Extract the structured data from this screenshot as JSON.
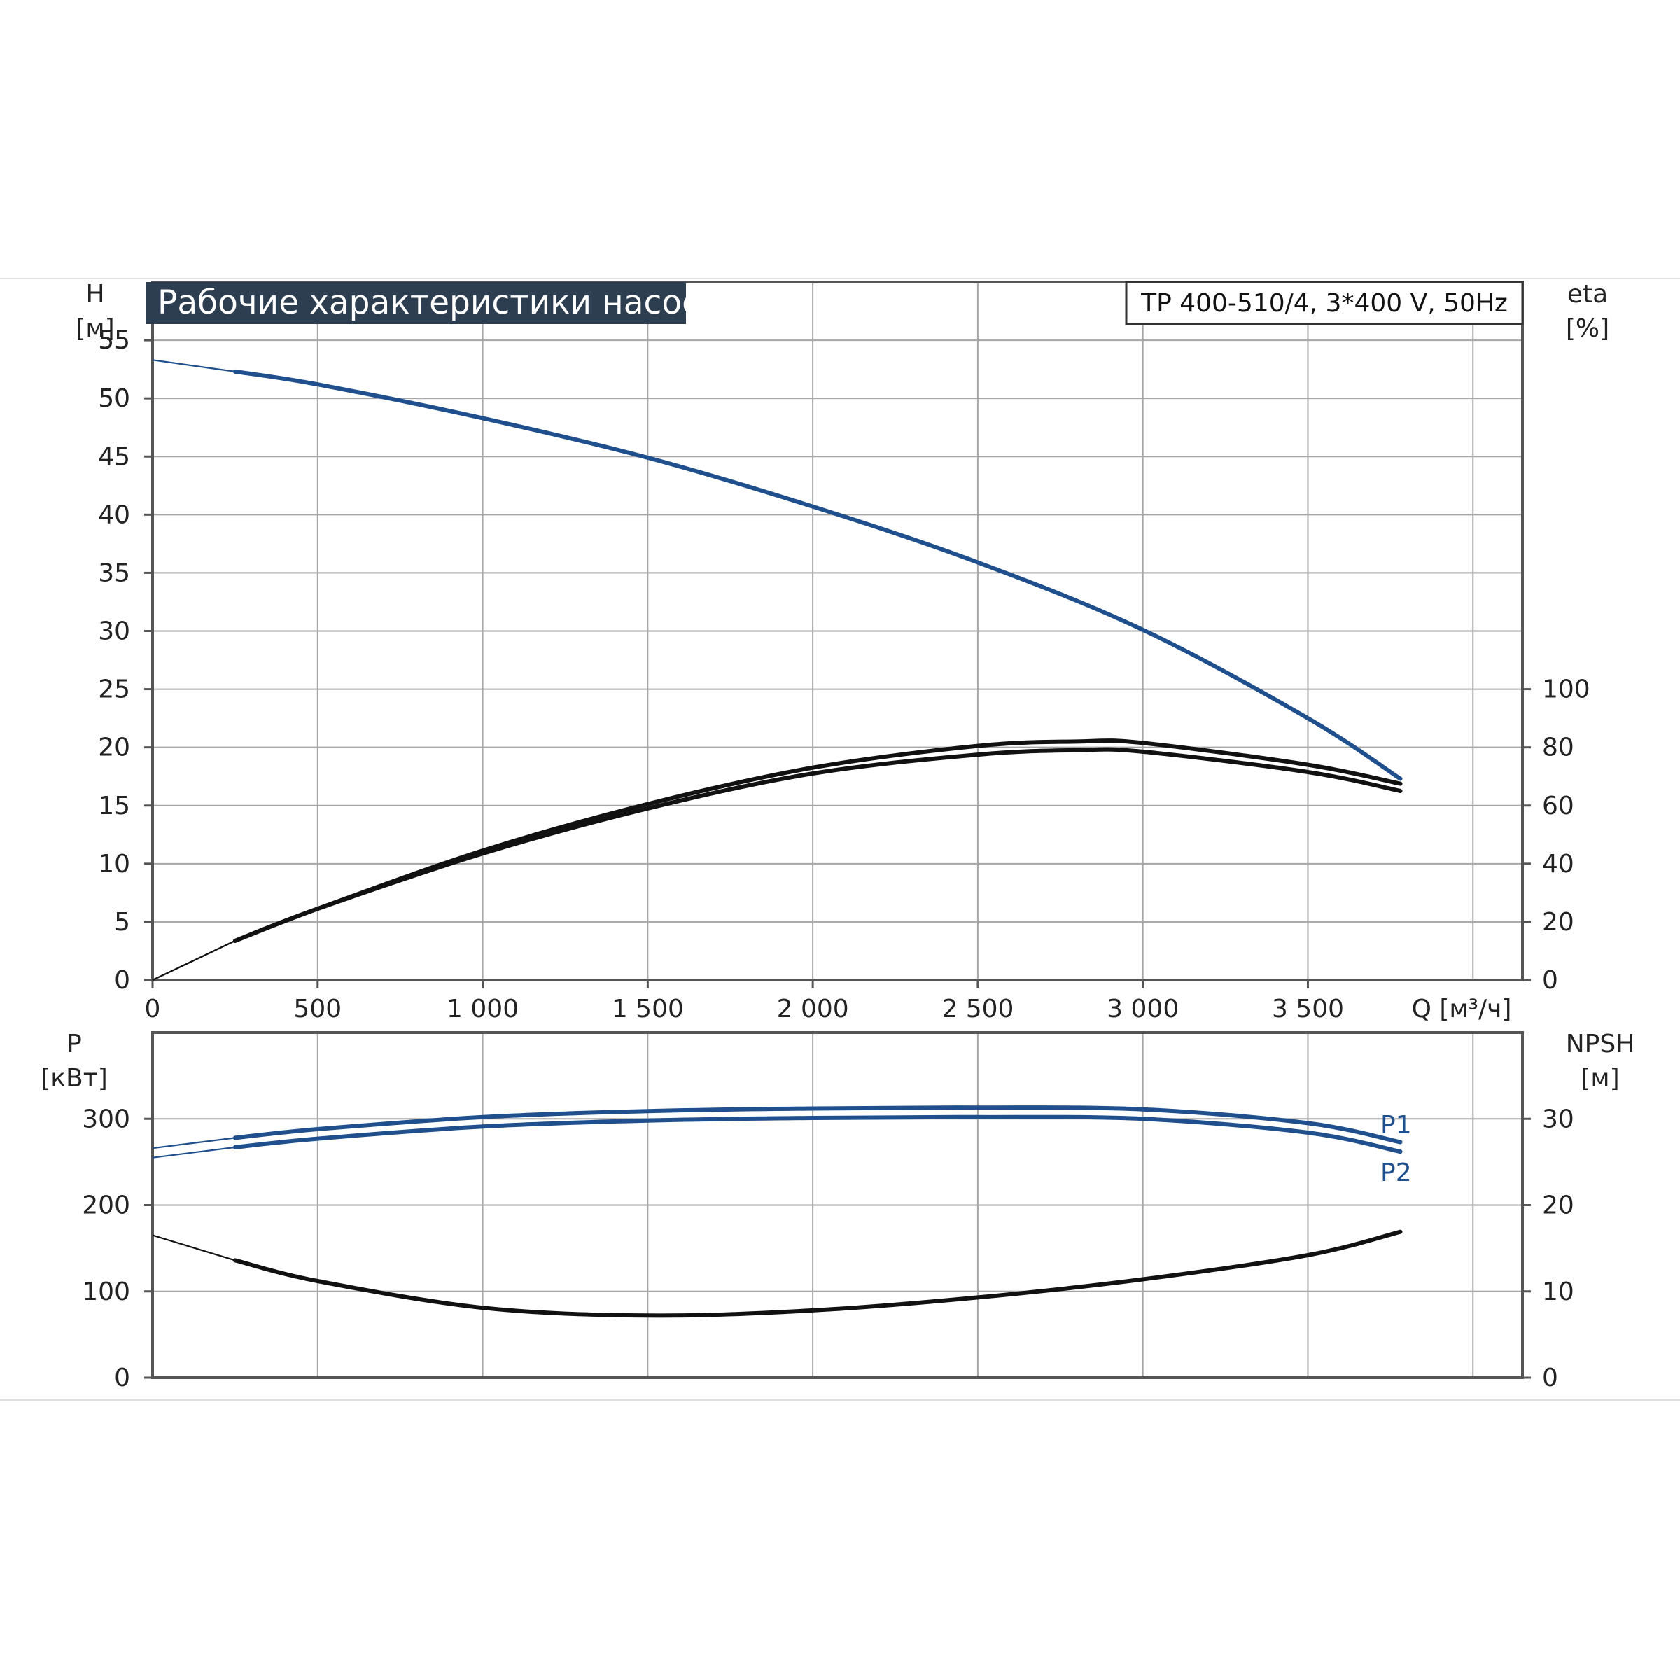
{
  "colors": {
    "blue": "#1f4f8c",
    "black": "#111111",
    "grid": "#a6a6a6",
    "title_bg": "#2d3e50"
  },
  "title": "Рабочие характеристики насоса",
  "model": "TP 400-510/4, 3*400 V, 50Hz",
  "chart_data": [
    {
      "type": "line",
      "x_label": "Q [м³/ч]",
      "x_ticks": [
        "0",
        "500",
        "1 000",
        "1 500",
        "2 000",
        "2 500",
        "3 000",
        "3 500"
      ],
      "xlim": [
        0,
        4150
      ],
      "y_left": {
        "name": "H",
        "unit": "[м]",
        "ticks": [
          "0",
          "5",
          "10",
          "15",
          "20",
          "25",
          "30",
          "35",
          "40",
          "45",
          "50",
          "55"
        ],
        "ylim": [
          0,
          60
        ]
      },
      "y_right": {
        "name": "eta",
        "unit": "[%]",
        "ticks": [
          "0",
          "20",
          "40",
          "60",
          "80",
          "100"
        ],
        "ylim": [
          0,
          240
        ]
      },
      "grid": true,
      "series": [
        {
          "axis": "left",
          "color": "blue",
          "points": [
            [
              0,
              53.3
            ],
            [
              250,
              52.3
            ],
            [
              500,
              51.2
            ],
            [
              1000,
              48.3
            ],
            [
              1500,
              44.9
            ],
            [
              2000,
              40.7
            ],
            [
              2500,
              35.9
            ],
            [
              3000,
              30.1
            ],
            [
              3500,
              22.5
            ],
            [
              3780,
              17.3
            ]
          ]
        },
        {
          "axis": "right",
          "color": "black",
          "points": [
            [
              0,
              0
            ],
            [
              250,
              13.5
            ],
            [
              500,
              24.5
            ],
            [
              1000,
              44.5
            ],
            [
              1500,
              60.5
            ],
            [
              2000,
              73
            ],
            [
              2500,
              80.5
            ],
            [
              2800,
              82
            ],
            [
              3000,
              81.5
            ],
            [
              3500,
              74
            ],
            [
              3780,
              67.5
            ]
          ]
        },
        {
          "axis": "right",
          "color": "black",
          "points": [
            [
              0,
              0
            ],
            [
              250,
              13.5
            ],
            [
              500,
              24.5
            ],
            [
              1000,
              43.5
            ],
            [
              1500,
              59
            ],
            [
              2000,
              71
            ],
            [
              2500,
              77.5
            ],
            [
              2800,
              79
            ],
            [
              3000,
              78.5
            ],
            [
              3500,
              71.5
            ],
            [
              3780,
              65
            ]
          ]
        }
      ]
    },
    {
      "type": "line",
      "y_left": {
        "name": "P",
        "unit": "[кВт]",
        "ticks": [
          "0",
          "100",
          "200",
          "300"
        ],
        "ylim": [
          0,
          400
        ]
      },
      "y_right": {
        "name": "NPSH",
        "unit": "[м]",
        "ticks": [
          "0",
          "10",
          "20",
          "30"
        ],
        "ylim": [
          0,
          40
        ]
      },
      "grid": true,
      "series": [
        {
          "name": "P1",
          "axis": "left",
          "color": "blue",
          "points": [
            [
              0,
              266
            ],
            [
              250,
              278
            ],
            [
              500,
              288
            ],
            [
              1000,
              302
            ],
            [
              1500,
              309
            ],
            [
              2000,
              312
            ],
            [
              2500,
              313
            ],
            [
              3000,
              311
            ],
            [
              3500,
              295
            ],
            [
              3780,
              273
            ]
          ]
        },
        {
          "name": "P2",
          "axis": "left",
          "color": "blue",
          "points": [
            [
              0,
              255
            ],
            [
              250,
              267
            ],
            [
              500,
              277
            ],
            [
              1000,
              291
            ],
            [
              1500,
              298
            ],
            [
              2000,
              301
            ],
            [
              2500,
              302
            ],
            [
              3000,
              300
            ],
            [
              3500,
              284
            ],
            [
              3780,
              262
            ]
          ]
        },
        {
          "axis": "right",
          "color": "black",
          "points": [
            [
              0,
              16.5
            ],
            [
              250,
              13.6
            ],
            [
              500,
              11.2
            ],
            [
              1000,
              8.1
            ],
            [
              1500,
              7.2
            ],
            [
              2000,
              7.8
            ],
            [
              2500,
              9.3
            ],
            [
              3000,
              11.4
            ],
            [
              3500,
              14.2
            ],
            [
              3780,
              16.9
            ]
          ]
        }
      ]
    }
  ]
}
